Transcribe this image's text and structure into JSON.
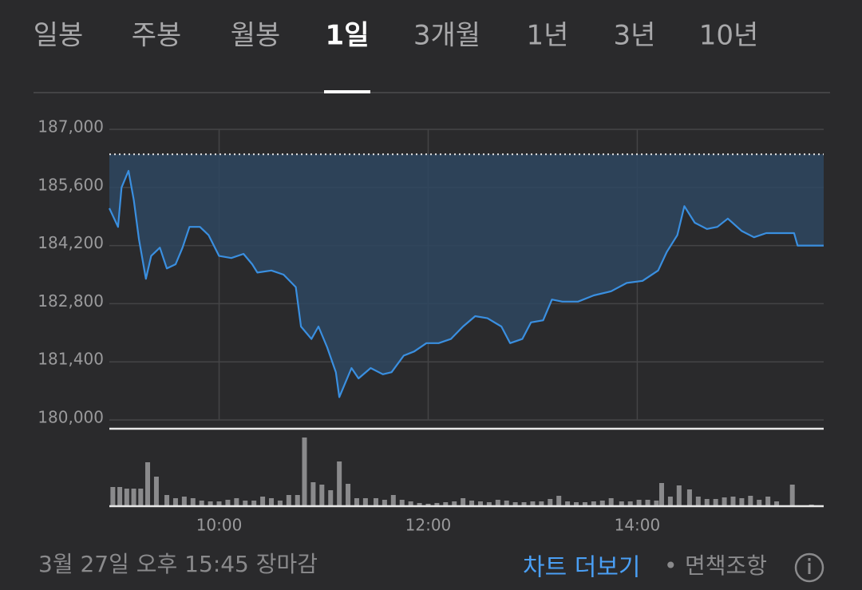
{
  "tabs": [
    "일봉",
    "주봉",
    "월봉",
    "1일",
    "3개월",
    "1년",
    "3년",
    "10년"
  ],
  "selected_tab": 3,
  "chart_data": {
    "type": "line",
    "x": [
      537,
      542,
      544,
      548,
      551,
      554,
      558,
      561,
      566,
      570,
      575,
      579,
      583,
      589,
      594,
      600,
      607,
      614,
      619,
      622,
      630,
      637,
      644,
      647,
      653,
      657,
      662,
      667,
      669,
      676,
      680,
      687,
      694,
      699,
      706,
      712,
      719,
      726,
      733,
      740,
      747,
      754,
      762,
      767,
      774,
      779,
      786,
      791,
      797,
      806,
      815,
      825,
      834,
      843,
      852,
      857,
      863,
      867,
      873,
      880,
      886,
      892,
      900,
      907,
      914,
      921,
      930,
      932,
      947
    ],
    "values": [
      185100,
      184650,
      185600,
      186000,
      185300,
      184350,
      183400,
      183950,
      184150,
      183650,
      183750,
      184150,
      184650,
      184650,
      184450,
      183950,
      183900,
      184000,
      183750,
      183550,
      183600,
      183500,
      183200,
      182250,
      181950,
      182250,
      181750,
      181150,
      180550,
      181250,
      181000,
      181250,
      181100,
      181150,
      181550,
      181650,
      181850,
      181850,
      181950,
      182250,
      182500,
      182450,
      182250,
      181850,
      181950,
      182350,
      182400,
      182900,
      182850,
      182850,
      183000,
      183100,
      183300,
      183350,
      183600,
      184050,
      184450,
      185150,
      184750,
      184600,
      184650,
      184850,
      184550,
      184400,
      184500,
      184500,
      184500,
      184200,
      184200
    ],
    "color": "#3a8fe0",
    "fill_color": "#2e4760",
    "reference_line": 186400,
    "xlim": [
      537,
      947
    ],
    "ylim": [
      180000,
      187000
    ],
    "xticks": [
      {
        "value": 600,
        "label": "10:00"
      },
      {
        "value": 720,
        "label": "12:00"
      },
      {
        "value": 840,
        "label": "14:00"
      }
    ],
    "yticks": [
      {
        "value": 187000,
        "label": "187,000"
      },
      {
        "value": 185600,
        "label": "185,600"
      },
      {
        "value": 184200,
        "label": "184,200"
      },
      {
        "value": 182800,
        "label": "182,800"
      },
      {
        "value": 181400,
        "label": "181,400"
      },
      {
        "value": 180000,
        "label": "180,000"
      }
    ],
    "grid": true,
    "volume": {
      "x": [
        539,
        543,
        547,
        551,
        555,
        559,
        564,
        570,
        575,
        580,
        585,
        590,
        595,
        600,
        605,
        610,
        615,
        620,
        625,
        630,
        635,
        640,
        645,
        649,
        654,
        659,
        664,
        669,
        674,
        679,
        684,
        690,
        695,
        700,
        705,
        710,
        715,
        720,
        725,
        730,
        735,
        740,
        745,
        750,
        755,
        760,
        765,
        770,
        775,
        780,
        785,
        790,
        795,
        800,
        805,
        810,
        815,
        820,
        825,
        831,
        836,
        841,
        846,
        851,
        854,
        859,
        864,
        870,
        875,
        880,
        885,
        890,
        895,
        900,
        905,
        910,
        915,
        920,
        929,
        940
      ],
      "values": [
        24,
        24,
        22,
        22,
        22,
        55,
        37,
        14,
        10,
        12,
        10,
        7,
        6,
        6,
        8,
        10,
        7,
        7,
        12,
        10,
        7,
        14,
        14,
        86,
        30,
        27,
        20,
        56,
        28,
        10,
        10,
        10,
        8,
        14,
        8,
        6,
        4,
        3,
        4,
        5,
        6,
        10,
        7,
        6,
        5,
        8,
        7,
        5,
        5,
        6,
        6,
        9,
        13,
        6,
        5,
        5,
        6,
        7,
        10,
        6,
        6,
        8,
        8,
        7,
        29,
        12,
        26,
        21,
        12,
        9,
        9,
        11,
        12,
        10,
        13,
        8,
        12,
        6,
        27,
        2
      ],
      "color": "#8a8a8c",
      "ylim": [
        0,
        90
      ]
    }
  },
  "footer": {
    "status": "3월 27일 오후 15:45 장마감",
    "more": "차트 더보기",
    "separator": "•",
    "disclaimer": "면책조항"
  }
}
